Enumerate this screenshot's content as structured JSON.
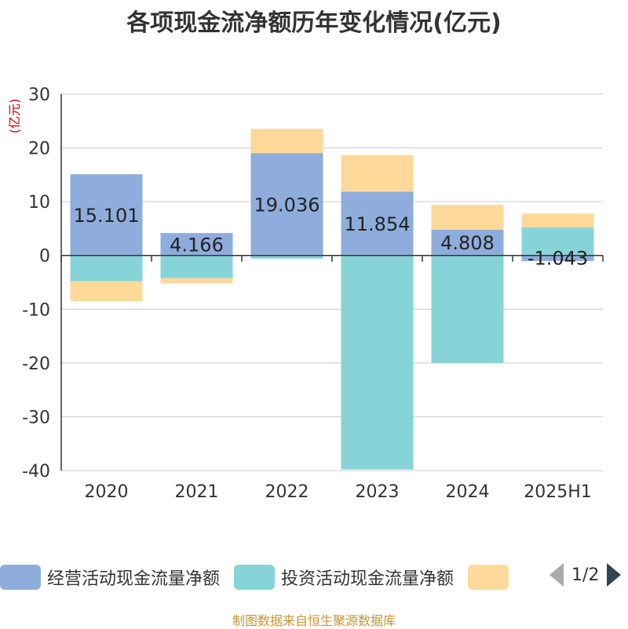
{
  "title": "各项现金流净额历年变化情况(亿元)",
  "colors": {
    "operating": "#8eaddc",
    "investing": "#86d4d8",
    "financing": "#fdd99a",
    "axis": "#333333",
    "grid": "#cccccc",
    "unit": "#cc0000"
  },
  "chart_data": {
    "type": "bar",
    "stacked": true,
    "unit_label": "(亿元)",
    "categories": [
      "2020",
      "2021",
      "2022",
      "2023",
      "2024",
      "2025H1"
    ],
    "ylim": [
      -40,
      30
    ],
    "yticks": [
      30,
      20,
      10,
      0,
      -10,
      -20,
      -30,
      -40
    ],
    "grid": true,
    "legend_position": "bottom",
    "series": [
      {
        "name": "经营活动现金流量净额",
        "values": [
          15.101,
          4.166,
          19.036,
          11.854,
          4.808,
          -1.043
        ],
        "labels": [
          "15.101",
          "4.166",
          "19.036",
          "11.854",
          "4.808",
          "-1.043"
        ]
      },
      {
        "name": "投资活动现金流量净额",
        "values": [
          -4.8,
          -4.2,
          -0.6,
          -39.8,
          -20.0,
          5.2
        ],
        "labels": []
      },
      {
        "name": "",
        "values": [
          -3.7,
          -1.0,
          4.5,
          6.8,
          4.6,
          2.6
        ],
        "labels": []
      }
    ]
  },
  "legend": {
    "items": [
      "经营活动现金流量净额",
      "投资活动现金流量净额",
      ""
    ],
    "page_text": "1/2"
  },
  "footer": "制图数据来自恒生聚源数据库"
}
